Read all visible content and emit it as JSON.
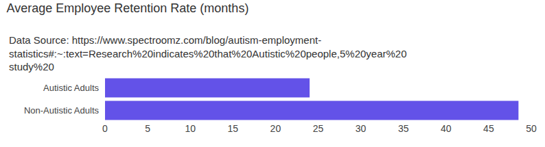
{
  "chart_data": {
    "type": "bar",
    "orientation": "horizontal",
    "title": "Average Employee Retention Rate (months)",
    "subtitle": "Data Source: https://www.spectroomz.com/blog/autism-employment-statistics#:~:text=Research%20indicates%20that%20Autistic%20people,5%20year%20study%20",
    "categories": [
      "Autistic Adults",
      "Non-Autistic Adults"
    ],
    "values": [
      24,
      48.5
    ],
    "color": "#6352e8",
    "xlim": [
      0,
      50
    ],
    "xticks": [
      0,
      5,
      10,
      15,
      20,
      25,
      30,
      35,
      40,
      45,
      50
    ],
    "grid": false
  }
}
